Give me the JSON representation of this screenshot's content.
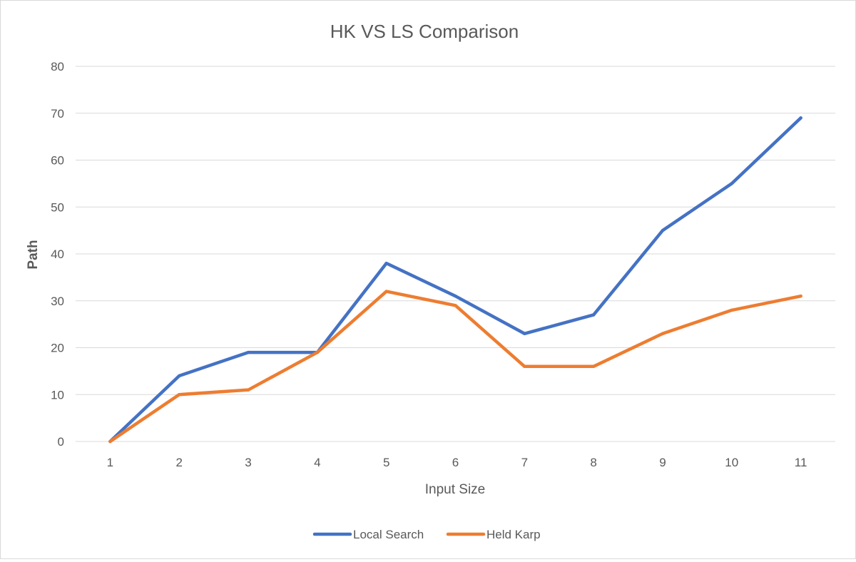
{
  "chart_data": {
    "type": "line",
    "title": "HK VS LS  Comparison",
    "xlabel": "Input Size",
    "ylabel": "Path",
    "categories": [
      "1",
      "2",
      "3",
      "4",
      "5",
      "6",
      "7",
      "8",
      "9",
      "10",
      "11"
    ],
    "ylim": [
      0,
      80
    ],
    "yticks": [
      0,
      10,
      20,
      30,
      40,
      50,
      60,
      70,
      80
    ],
    "grid": "horizontal",
    "legend_position": "bottom",
    "series": [
      {
        "name": "Local Search",
        "color": "#4472c4",
        "values": [
          0,
          14,
          19,
          19,
          38,
          31,
          23,
          27,
          45,
          55,
          69
        ]
      },
      {
        "name": "Held Karp",
        "color": "#ed7d31",
        "values": [
          0,
          10,
          11,
          19,
          32,
          29,
          16,
          16,
          23,
          28,
          31
        ]
      }
    ]
  }
}
